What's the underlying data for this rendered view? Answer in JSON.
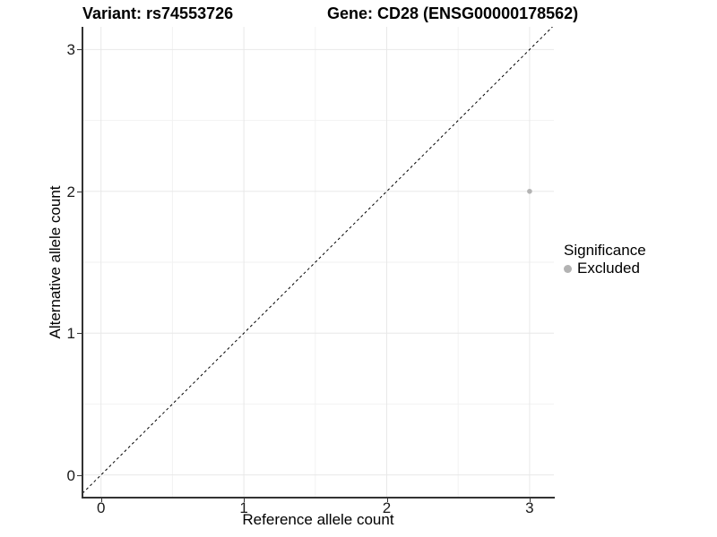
{
  "header": {
    "title_left": "Variant: rs74553726",
    "title_right": "Gene: CD28 (ENSG00000178562)"
  },
  "axes": {
    "x": {
      "label": "Reference allele count"
    },
    "y": {
      "label": "Alternative allele count"
    }
  },
  "legend": {
    "title": "Significance",
    "items": [
      {
        "label": "Excluded",
        "color": "#b3b3b3"
      }
    ]
  },
  "chart_data": {
    "type": "scatter",
    "title_left": "Variant: rs74553726",
    "title_right": "Gene: CD28 (ENSG00000178562)",
    "xlabel": "Reference allele count",
    "ylabel": "Alternative allele count",
    "xlim": [
      -0.13,
      3.17
    ],
    "ylim": [
      -0.16,
      3.16
    ],
    "x_ticks": [
      0,
      1,
      2,
      3
    ],
    "y_ticks": [
      0,
      1,
      2,
      3
    ],
    "x_minor_ticks": [
      0.5,
      1.5,
      2.5
    ],
    "y_minor_ticks": [
      0.5,
      1.5,
      2.5
    ],
    "grid": true,
    "identity_line": {
      "slope": 1,
      "intercept": 0,
      "style": "dashed",
      "color": "#000000"
    },
    "series": [
      {
        "name": "Excluded",
        "color": "#b3b3b3",
        "points": [
          {
            "x": 3,
            "y": 2
          }
        ]
      }
    ],
    "point_radius": 2.8,
    "legend": {
      "title": "Significance",
      "position": "right",
      "items": [
        "Excluded"
      ]
    },
    "colors": {
      "major_grid": "#e8e8e8",
      "minor_grid": "#f2f2f2",
      "axis": "#333333",
      "background": "#ffffff"
    }
  }
}
